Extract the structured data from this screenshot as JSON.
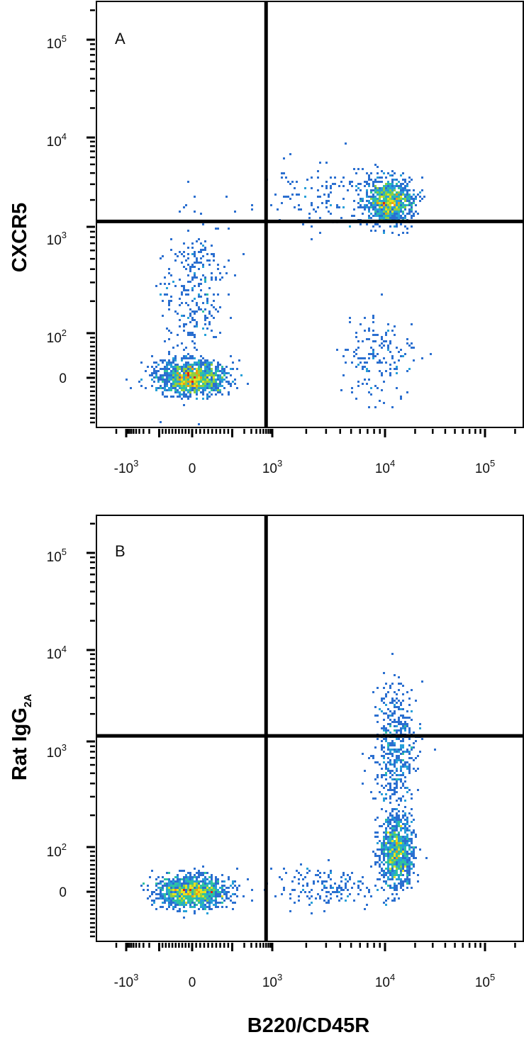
{
  "chart_data": [
    {
      "type": "scatter",
      "panel_label": "A",
      "xlabel": "",
      "ylabel": "CXCR5",
      "x_scale": "biexponential",
      "y_scale": "biexponential",
      "x_ticks": [
        {
          "value": -1000,
          "base": "-10",
          "exp": "3"
        },
        {
          "value": 0,
          "base": "0",
          "exp": ""
        },
        {
          "value": 1000,
          "base": "10",
          "exp": "3"
        },
        {
          "value": 10000,
          "base": "10",
          "exp": "4"
        },
        {
          "value": 100000,
          "base": "10",
          "exp": "5"
        }
      ],
      "y_ticks": [
        {
          "value": 0,
          "base": "0",
          "exp": ""
        },
        {
          "value": 100,
          "base": "10",
          "exp": "2"
        },
        {
          "value": 1000,
          "base": "10",
          "exp": "3"
        },
        {
          "value": 10000,
          "base": "10",
          "exp": "4"
        },
        {
          "value": 100000,
          "base": "10",
          "exp": "5"
        }
      ],
      "quadrant_gate": {
        "x": 700,
        "y": 1150
      },
      "populations": [
        {
          "x": 0,
          "y": 0,
          "count": 1200
        },
        {
          "x": 11000,
          "y": 1900,
          "count": 900
        },
        {
          "x": 0,
          "y": 250,
          "count": 280
        },
        {
          "x": 9000,
          "y": 40,
          "count": 160
        },
        {
          "x": 3000,
          "y": 2200,
          "count": 140
        }
      ],
      "grid": false,
      "legend": "none"
    },
    {
      "type": "scatter",
      "panel_label": "B",
      "xlabel": "B220/CD45R",
      "ylabel": "Rat IgG",
      "ylabel_subscript": "2A",
      "x_scale": "biexponential",
      "y_scale": "biexponential",
      "x_ticks": [
        {
          "value": -1000,
          "base": "-10",
          "exp": "3"
        },
        {
          "value": 0,
          "base": "0",
          "exp": ""
        },
        {
          "value": 1000,
          "base": "10",
          "exp": "3"
        },
        {
          "value": 10000,
          "base": "10",
          "exp": "4"
        },
        {
          "value": 100000,
          "base": "10",
          "exp": "5"
        }
      ],
      "y_ticks": [
        {
          "value": 0,
          "base": "0",
          "exp": ""
        },
        {
          "value": 100,
          "base": "10",
          "exp": "2"
        },
        {
          "value": 1000,
          "base": "10",
          "exp": "3"
        },
        {
          "value": 10000,
          "base": "10",
          "exp": "4"
        },
        {
          "value": 100000,
          "base": "10",
          "exp": "5"
        }
      ],
      "quadrant_gate": {
        "x": 700,
        "y": 1150
      },
      "populations": [
        {
          "x": 0,
          "y": 0,
          "count": 1200
        },
        {
          "x": 13000,
          "y": 90,
          "count": 900
        },
        {
          "x": 13000,
          "y": 900,
          "count": 450
        },
        {
          "x": 3000,
          "y": 10,
          "count": 160
        }
      ],
      "grid": false,
      "legend": "none"
    }
  ]
}
